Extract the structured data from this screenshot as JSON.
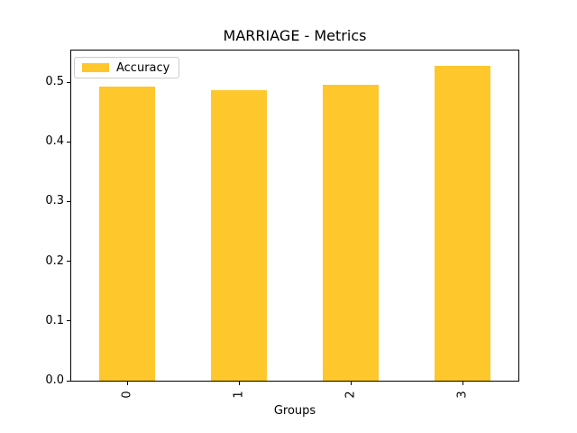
{
  "figure": {
    "title": "MARRIAGE - Metrics",
    "xlabel": "Groups"
  },
  "legend": {
    "label": "Accuracy"
  },
  "colors": {
    "bar": "#FEC72B",
    "axis": "#000000",
    "legend_border": "#cccccc",
    "background": "#ffffff",
    "text": "#000000"
  },
  "chart_data": {
    "type": "bar",
    "title": "MARRIAGE - Metrics",
    "xlabel": "Groups",
    "ylabel": "",
    "categories": [
      "0",
      "1",
      "2",
      "3"
    ],
    "series": [
      {
        "name": "Accuracy",
        "color": "#FEC72B",
        "values": [
          0.493,
          0.487,
          0.496,
          0.528
        ]
      }
    ],
    "yticks": [
      "0.0",
      "0.1",
      "0.2",
      "0.3",
      "0.4",
      "0.5"
    ],
    "ylim": [
      0,
      0.553
    ],
    "grid": false,
    "legend_position": "upper left",
    "bar_width_fraction": 0.5,
    "xtick_rotation_deg": 90
  }
}
